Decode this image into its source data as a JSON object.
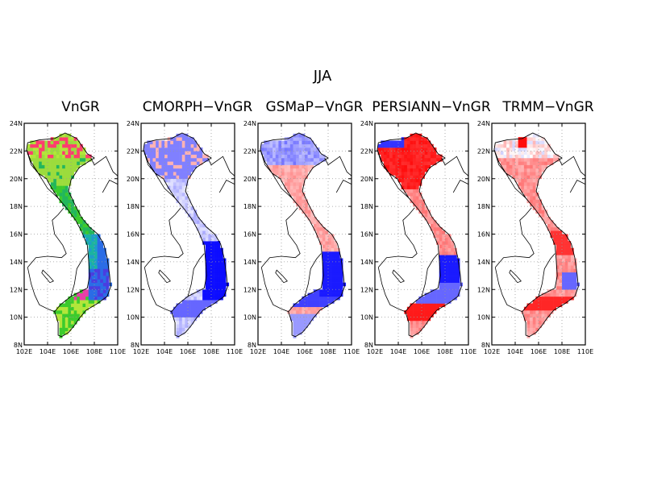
{
  "title": "JJA",
  "axes": {
    "lat_ticks": [
      "24N",
      "22N",
      "20N",
      "18N",
      "16N",
      "14N",
      "12N",
      "10N",
      "8N"
    ],
    "lon_ticks": [
      "102E",
      "104E",
      "106E",
      "108E",
      "110E"
    ]
  },
  "panels": [
    {
      "title": "VnGR",
      "style": "absolute"
    },
    {
      "title": "CMORPH−VnGR",
      "style": "diff",
      "pattern": "cmorph"
    },
    {
      "title": "GSMaP−VnGR",
      "style": "diff",
      "pattern": "gsmap"
    },
    {
      "title": "PERSIANN−VnGR",
      "style": "diff",
      "pattern": "persiann"
    },
    {
      "title": "TRMM−VnGR",
      "style": "diff",
      "pattern": "trmm"
    }
  ],
  "colors": {
    "wet": "#0000ff",
    "dry": "#ff0000",
    "neutral": "#ffffff",
    "gridline": "#999999",
    "coast": "#000000"
  }
}
